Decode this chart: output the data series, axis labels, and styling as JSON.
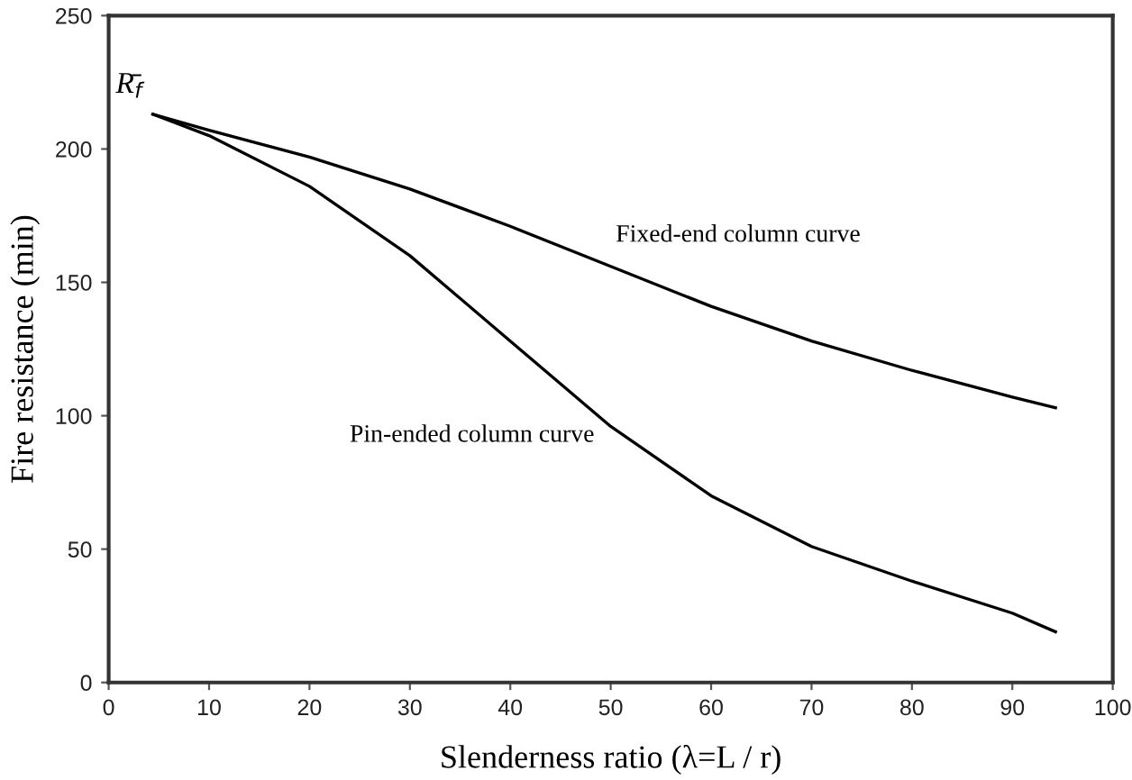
{
  "chart_data": {
    "type": "line",
    "xlabel": "Slenderness ratio (λ=L / r)",
    "ylabel": "Fire resistance (min)",
    "xlim": [
      0,
      100
    ],
    "xticks": [
      0,
      10,
      20,
      30,
      40,
      50,
      60,
      70,
      80,
      90,
      100
    ],
    "ylim": [
      0,
      250
    ],
    "yticks": [
      0,
      50,
      100,
      150,
      200,
      250
    ],
    "grid": false,
    "legend": false,
    "marker": "none",
    "line_style": "solid",
    "series": [
      {
        "color": "#000000",
        "x": [
          4.4,
          10,
          20,
          30,
          40,
          50,
          60,
          70,
          80,
          90,
          94.3
        ],
        "values": [
          213,
          207,
          197,
          185,
          171,
          156,
          141,
          128,
          117,
          107,
          103
        ]
      },
      {
        "color": "#000000",
        "x": [
          4.4,
          10,
          20,
          30,
          40,
          50,
          60,
          70,
          80,
          90,
          94.3
        ],
        "values": [
          213,
          205,
          186,
          160,
          128,
          96,
          70,
          51,
          38,
          26,
          19
        ]
      }
    ],
    "annotations": [
      {
        "text": "R̄$_{f}$",
        "x": 4.4,
        "y": 213
      },
      "Fixed-end column curve",
      "Pin-ended column curve"
    ]
  }
}
